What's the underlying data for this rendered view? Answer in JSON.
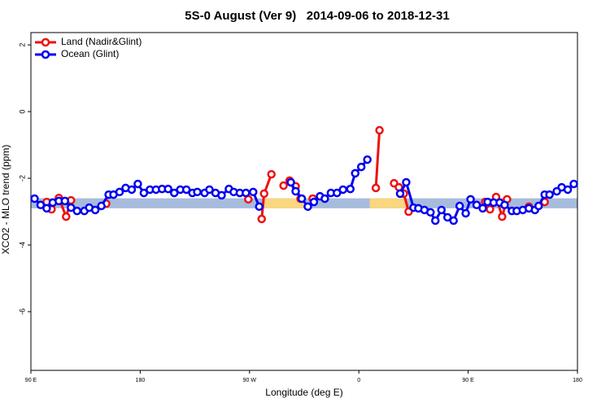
{
  "chart_data": {
    "type": "line",
    "title": "5S-0 August (Ver 9)   2014-09-06 to 2018-12-31",
    "x_label": "Longitude (deg E)",
    "y_label": "XCO2 - MLO trend (ppm)",
    "xlim": [
      90,
      540
    ],
    "ylim": [
      -7.76,
      2.37
    ],
    "xticks": [
      {
        "value": 90,
        "label": "90 E"
      },
      {
        "value": 180,
        "label": "180"
      },
      {
        "value": 270,
        "label": "90 W"
      },
      {
        "value": 360,
        "label": "0"
      },
      {
        "value": 450,
        "label": "90 E"
      },
      {
        "value": 540,
        "label": "180"
      }
    ],
    "yticks": [
      2,
      0,
      -2,
      -4,
      -6
    ],
    "legend": "top-left",
    "reference_band": {
      "range": [
        -2.9,
        -2.6
      ],
      "color": "#a7bcdc"
    },
    "highlight_ranges": {
      "ranges": [
        [
          282,
          315
        ],
        [
          369,
          399
        ]
      ],
      "color": "#f9d67f"
    },
    "series": [
      {
        "name": "Land (Nadir&Glint)",
        "color": "#ee1111",
        "x": [
          103,
          107,
          113,
          119,
          123,
          null,
          152,
          null,
          269,
          null,
          280,
          282,
          288,
          null,
          298,
          303,
          308,
          312,
          null,
          322,
          null,
          374,
          377,
          null,
          389,
          393,
          397,
          401,
          null,
          464,
          468,
          473,
          478,
          482,
          null,
          500,
          null,
          513
        ],
        "values": [
          -2.71,
          -2.93,
          -2.59,
          -3.15,
          -2.66,
          null,
          -2.76,
          null,
          -2.63,
          null,
          -3.22,
          -2.46,
          -1.88,
          null,
          -2.22,
          -2.07,
          -2.24,
          -2.61,
          null,
          -2.61,
          null,
          -2.29,
          -0.56,
          null,
          -2.15,
          -2.27,
          -2.46,
          -3.0,
          null,
          -2.71,
          -2.93,
          -2.56,
          -3.15,
          -2.63,
          null,
          -2.85,
          null,
          -2.71
        ]
      },
      {
        "name": "Ocean (Glint)",
        "color": "#0000ee",
        "x": [
          93,
          98,
          103,
          108,
          113,
          118,
          123,
          128,
          134,
          138,
          143,
          148,
          154,
          158,
          163,
          168,
          173,
          178,
          183,
          188,
          193,
          198,
          203,
          208,
          213,
          218,
          223,
          227,
          233,
          237,
          242,
          247,
          253,
          257,
          262,
          267,
          273,
          278,
          null,
          304,
          308,
          313,
          318,
          323,
          328,
          332,
          337,
          342,
          347,
          353,
          357,
          362,
          367,
          null,
          394,
          399,
          405,
          409,
          414,
          419,
          423,
          428,
          433,
          438,
          443,
          448,
          452,
          457,
          462,
          466,
          471,
          476,
          480,
          486,
          490,
          495,
          500,
          505,
          508,
          513,
          517,
          523,
          527,
          532,
          537
        ],
        "values": [
          -2.61,
          -2.8,
          -2.9,
          -2.73,
          -2.68,
          -2.68,
          -2.88,
          -2.98,
          -2.98,
          -2.88,
          -2.95,
          -2.83,
          -2.49,
          -2.49,
          -2.41,
          -2.29,
          -2.34,
          -2.17,
          -2.44,
          -2.34,
          -2.34,
          -2.32,
          -2.32,
          -2.44,
          -2.34,
          -2.34,
          -2.44,
          -2.41,
          -2.44,
          -2.34,
          -2.44,
          -2.51,
          -2.32,
          -2.41,
          -2.44,
          -2.44,
          -2.41,
          -2.85,
          null,
          -2.12,
          -2.39,
          -2.61,
          -2.85,
          -2.71,
          -2.54,
          -2.61,
          -2.44,
          -2.44,
          -2.34,
          -2.32,
          -1.85,
          -1.66,
          -1.44,
          null,
          -2.46,
          -2.12,
          -2.88,
          -2.9,
          -2.95,
          -3.02,
          -3.27,
          -2.95,
          -3.17,
          -3.27,
          -2.83,
          -3.05,
          -2.63,
          -2.8,
          -2.9,
          -2.71,
          -2.73,
          -2.73,
          -2.8,
          -2.98,
          -2.98,
          -2.95,
          -2.9,
          -2.95,
          -2.83,
          -2.49,
          -2.49,
          -2.39,
          -2.27,
          -2.34,
          -2.17
        ]
      }
    ]
  }
}
